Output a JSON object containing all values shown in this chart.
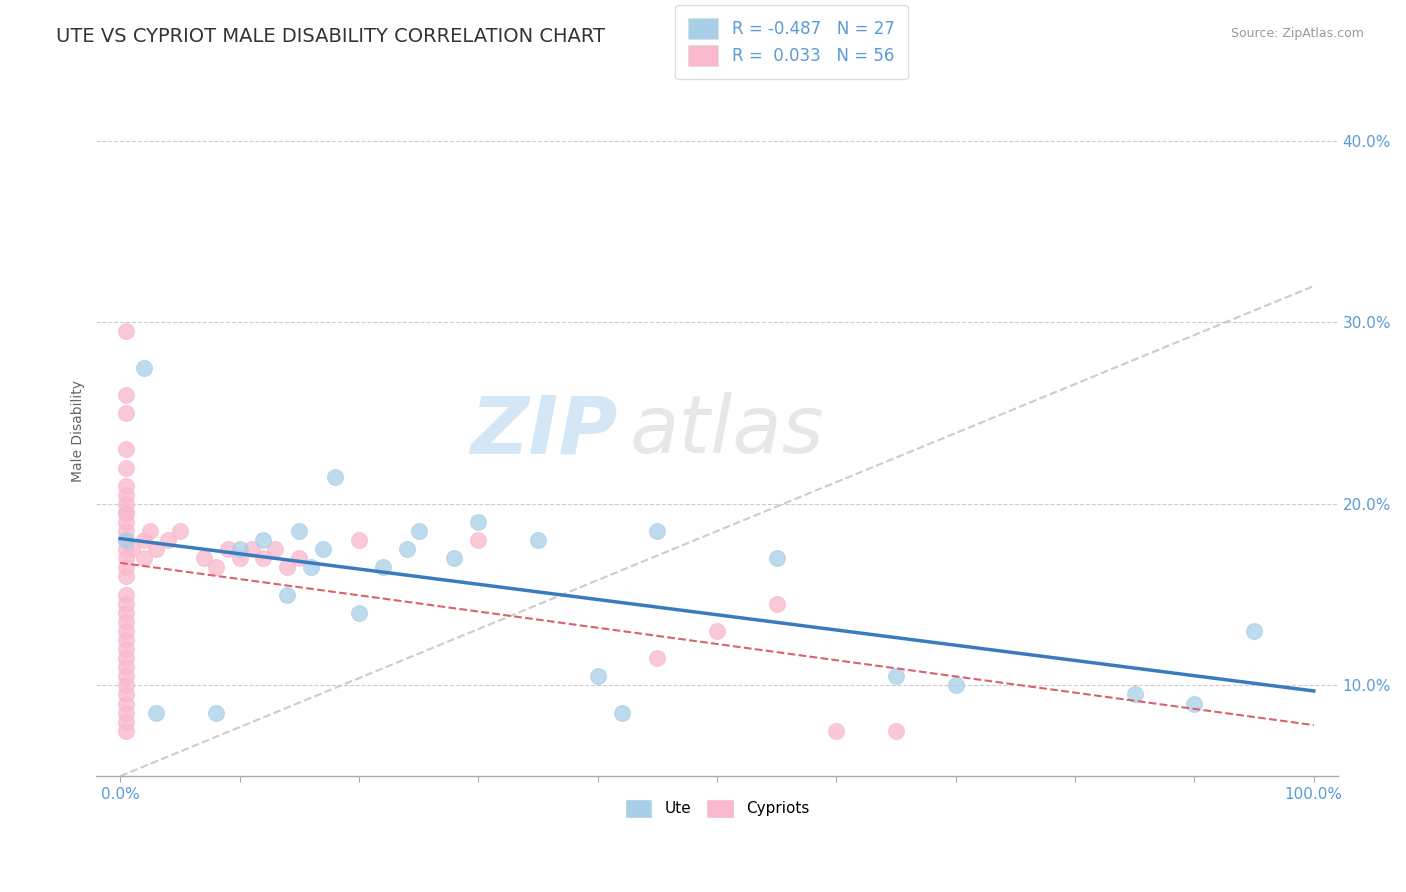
{
  "title": "UTE VS CYPRIOT MALE DISABILITY CORRELATION CHART",
  "source": "Source: ZipAtlas.com",
  "ylabel": "Male Disability",
  "legend_labels": [
    "Ute",
    "Cypriots"
  ],
  "ute_r": -0.487,
  "ute_n": 27,
  "cypriot_r": 0.033,
  "cypriot_n": 56,
  "ute_color": "#a8cfe8",
  "cypriot_color": "#f9b8cb",
  "ute_line_color": "#3a7bbf",
  "cypriot_line_color": "#d9626d",
  "ref_line_color": "#cccccc",
  "background": "#ffffff",
  "ute_x": [
    0.5,
    2.0,
    8.0,
    10.0,
    12.0,
    14.0,
    15.0,
    16.0,
    17.0,
    18.0,
    20.0,
    22.0,
    24.0,
    25.0,
    28.0,
    30.0,
    35.0,
    40.0,
    45.0,
    65.0,
    70.0,
    85.0,
    90.0,
    95.0,
    42.0,
    55.0,
    3.0
  ],
  "ute_y": [
    18.0,
    27.5,
    8.5,
    17.5,
    18.0,
    15.0,
    18.5,
    16.5,
    17.5,
    21.5,
    14.0,
    16.5,
    17.5,
    18.5,
    17.0,
    19.0,
    18.0,
    10.5,
    18.5,
    10.5,
    10.0,
    9.5,
    9.0,
    13.0,
    8.5,
    17.0,
    8.5
  ],
  "cypriot_x": [
    0.5,
    0.5,
    0.5,
    0.5,
    0.5,
    0.5,
    0.5,
    0.5,
    0.5,
    0.5,
    0.5,
    0.5,
    0.5,
    0.5,
    0.5,
    0.5,
    0.5,
    0.5,
    0.5,
    0.5,
    0.5,
    0.5,
    2.0,
    2.0,
    2.5,
    3.0,
    4.0,
    5.0,
    7.0,
    8.0,
    9.0,
    10.0,
    11.0,
    12.0,
    13.0,
    14.0,
    15.0,
    20.0,
    45.0,
    50.0,
    55.0,
    60.0,
    65.0,
    0.5,
    0.5,
    0.5,
    0.5,
    0.5,
    0.5,
    0.5,
    0.5,
    0.5,
    1.0,
    30.0,
    0.5,
    0.5
  ],
  "cypriot_y": [
    18.5,
    18.0,
    17.5,
    17.0,
    16.5,
    16.0,
    15.0,
    14.5,
    14.0,
    13.5,
    13.0,
    12.5,
    12.0,
    11.5,
    11.0,
    10.5,
    10.0,
    9.5,
    9.0,
    8.5,
    8.0,
    7.5,
    18.0,
    17.0,
    18.5,
    17.5,
    18.0,
    18.5,
    17.0,
    16.5,
    17.5,
    17.0,
    17.5,
    17.0,
    17.5,
    16.5,
    17.0,
    18.0,
    11.5,
    13.0,
    14.5,
    7.5,
    7.5,
    29.5,
    19.0,
    19.5,
    20.0,
    19.5,
    20.5,
    21.0,
    22.0,
    23.0,
    17.5,
    18.0,
    25.0,
    26.0
  ],
  "xlim": [
    -2,
    102
  ],
  "ylim": [
    5,
    43
  ],
  "yticks": [
    10.0,
    20.0,
    30.0,
    40.0
  ],
  "ytick_labels": [
    "10.0%",
    "20.0%",
    "30.0%",
    "40.0%"
  ],
  "xticks": [
    0,
    10,
    20,
    30,
    40,
    50,
    60,
    70,
    80,
    90,
    100
  ],
  "xtick_label_positions": [
    0,
    100
  ],
  "xtick_labels": [
    "0.0%",
    "100.0%"
  ],
  "grid_color": "#cccccc",
  "watermark_zip": "ZIP",
  "watermark_atlas": "atlas",
  "title_fontsize": 14,
  "label_fontsize": 10,
  "tick_label_color": "#5b9bd5",
  "tick_label_fontsize": 11
}
